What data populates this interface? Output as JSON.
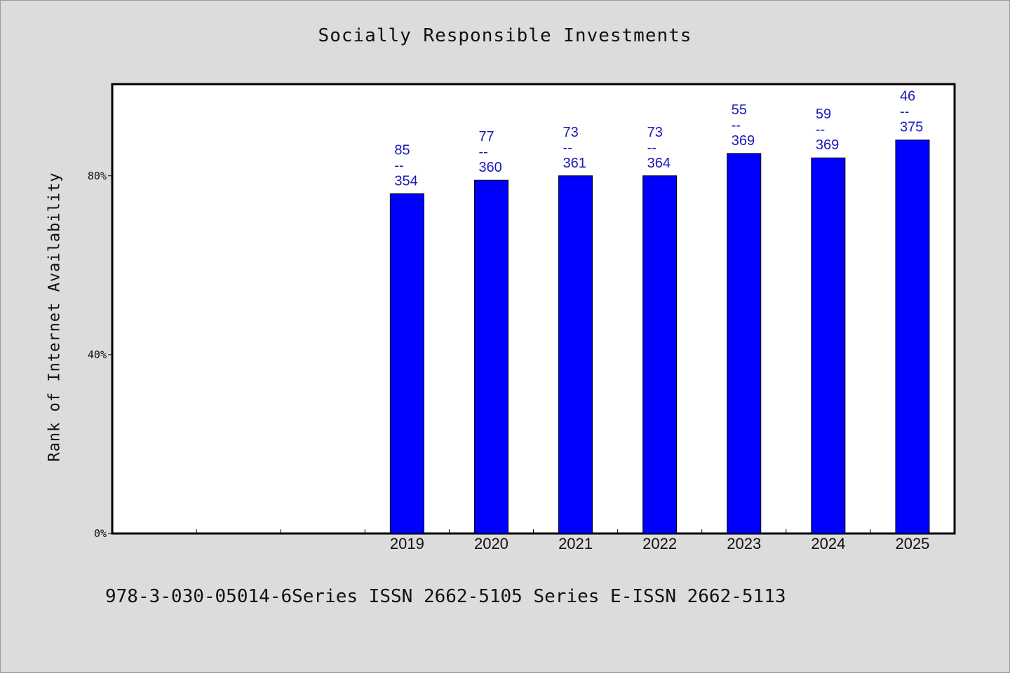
{
  "chart_data": {
    "type": "bar",
    "title": "Socially Responsible Investments",
    "xlabel": "",
    "ylabel": "Rank of Internet Availability",
    "categories": [
      "",
      "",
      "",
      "2019",
      "2020",
      "2021",
      "2022",
      "2023",
      "2024",
      "2025"
    ],
    "values": [
      null,
      null,
      null,
      76,
      79,
      80,
      80,
      85,
      84,
      88
    ],
    "data_labels": [
      null,
      null,
      null,
      [
        "85",
        "--",
        "354"
      ],
      [
        "77",
        "--",
        "360"
      ],
      [
        "73",
        "--",
        "361"
      ],
      [
        "73",
        "--",
        "364"
      ],
      [
        "55",
        "--",
        "369"
      ],
      [
        "59",
        "--",
        "369"
      ],
      [
        "46",
        "--",
        "375"
      ]
    ],
    "ylim": [
      0,
      100.5
    ],
    "yticks": [
      0,
      40,
      80
    ],
    "ytick_labels": [
      "0%",
      "40%",
      "80%"
    ],
    "grid": false,
    "bar_color": "#0000ff",
    "label_color": "#1a1ab8"
  },
  "footer": "978-3-030-05014-6Series ISSN 2662-5105 Series E-ISSN 2662-5113"
}
